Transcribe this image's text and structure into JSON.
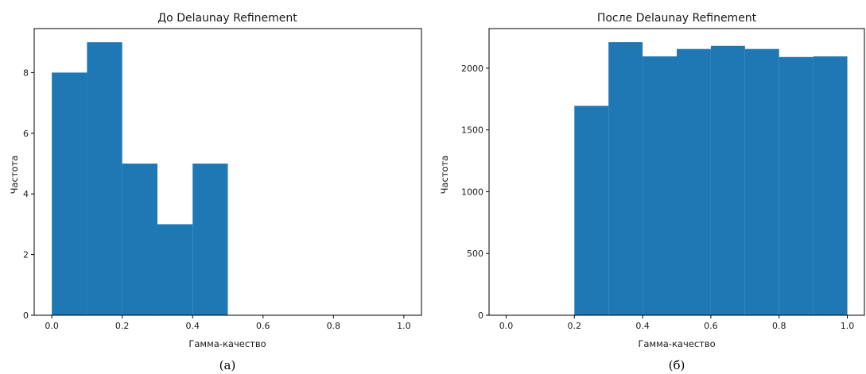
{
  "chart_data": [
    {
      "type": "bar",
      "title": "До Delaunay Refinement",
      "xlabel": "Гамма-качество",
      "ylabel": "Частота",
      "caption": "(а)",
      "bin_edges": [
        0.0,
        0.1,
        0.2,
        0.3,
        0.4,
        0.5,
        0.6,
        0.7,
        0.8,
        0.9,
        1.0
      ],
      "values": [
        8,
        9,
        5,
        3,
        5,
        0,
        0,
        0,
        0,
        0
      ],
      "xlim": [
        -0.05,
        1.05
      ],
      "ylim": [
        0,
        9.45
      ],
      "xticks": [
        0.0,
        0.2,
        0.4,
        0.6,
        0.8,
        1.0
      ],
      "xtick_labels": [
        "0.0",
        "0.2",
        "0.4",
        "0.6",
        "0.8",
        "1.0"
      ],
      "yticks": [
        0,
        2,
        4,
        6,
        8
      ],
      "ytick_labels": [
        "0",
        "2",
        "4",
        "6",
        "8"
      ],
      "color": "#1f77b4",
      "grid": false
    },
    {
      "type": "bar",
      "title": "После Delaunay Refinement",
      "xlabel": "Гамма-качество",
      "ylabel": "Частота",
      "caption": "(б)",
      "bin_edges": [
        0.0,
        0.1,
        0.2,
        0.3,
        0.4,
        0.5,
        0.6,
        0.7,
        0.8,
        0.9,
        1.0
      ],
      "values": [
        0,
        0,
        1695,
        2210,
        2095,
        2155,
        2180,
        2155,
        2090,
        2095
      ],
      "xlim": [
        -0.05,
        1.05
      ],
      "ylim": [
        0,
        2320
      ],
      "xticks": [
        0.0,
        0.2,
        0.4,
        0.6,
        0.8,
        1.0
      ],
      "xtick_labels": [
        "0.0",
        "0.2",
        "0.4",
        "0.6",
        "0.8",
        "1.0"
      ],
      "yticks": [
        0,
        500,
        1000,
        1500,
        2000
      ],
      "ytick_labels": [
        "0",
        "500",
        "1000",
        "1500",
        "2000"
      ],
      "color": "#1f77b4",
      "grid": false
    }
  ]
}
